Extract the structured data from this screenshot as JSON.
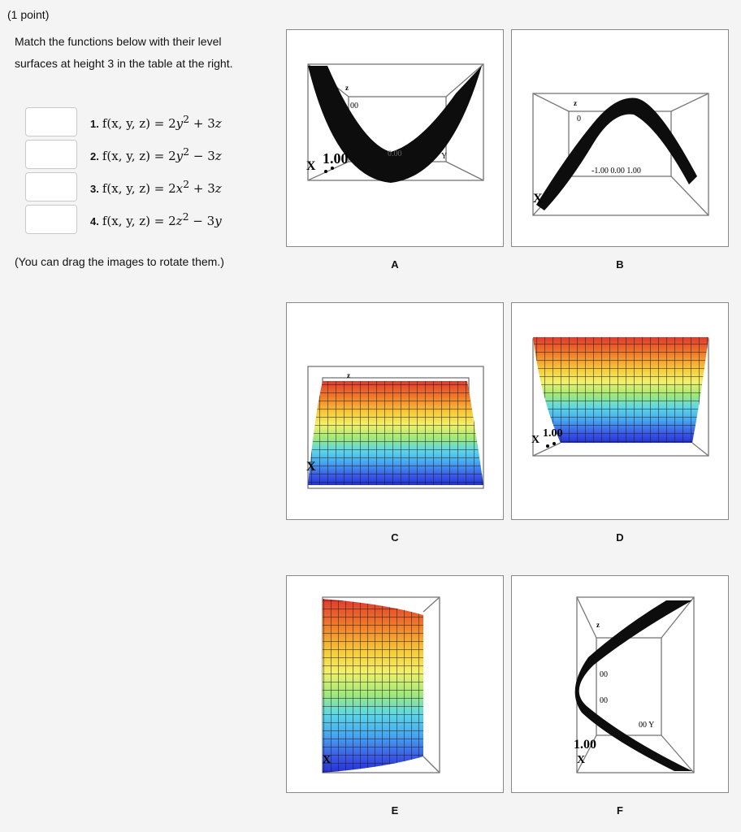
{
  "header": {
    "points": "(1 point)",
    "instructions": "Match the functions below with their level surfaces at height 3 in the table at the right.",
    "drag_note": "(You can drag the images to rotate them.)"
  },
  "functions": [
    {
      "num": "1.",
      "lhs": "f(x, y, z) = 2",
      "var": "y",
      "rhs": " + 3",
      "rhs_var": "z",
      "answer": ""
    },
    {
      "num": "2.",
      "lhs": "f(x, y, z) = 2",
      "var": "y",
      "rhs": " − 3",
      "rhs_var": "z",
      "answer": ""
    },
    {
      "num": "3.",
      "lhs": "f(x, y, z) = 2",
      "var": "x",
      "rhs": " + 3",
      "rhs_var": "z",
      "answer": ""
    },
    {
      "num": "4.",
      "lhs": "f(x, y, z) = 2",
      "var": "z",
      "rhs": " − 3",
      "rhs_var": "y",
      "answer": ""
    }
  ],
  "panels": [
    {
      "label": "A",
      "axis_labels": {
        "z": "z",
        "top": "00",
        "mid": "0.00",
        "x": "X",
        "x_tick": "1.00",
        "y": "Y"
      }
    },
    {
      "label": "B",
      "axis_labels": {
        "z": "z",
        "top": "0",
        "y_ticks": "-1.00 0.00 1.00",
        "x": "X"
      }
    },
    {
      "label": "C",
      "axis_labels": {
        "z": "z",
        "x": "X"
      }
    },
    {
      "label": "D",
      "axis_labels": {
        "x_tick": "1.00",
        "x": "X"
      }
    },
    {
      "label": "E",
      "axis_labels": {
        "x": "X"
      }
    },
    {
      "label": "F",
      "axis_labels": {
        "z": "z",
        "top": "00",
        "mid": "00",
        "x_tick": "1.00",
        "y_tick": "00 Y",
        "x": "X"
      }
    }
  ],
  "colors": {
    "band_stops": [
      "#e03a2e",
      "#ef7a2a",
      "#f6c93a",
      "#f2f06a",
      "#9ee87a",
      "#5ed8e6",
      "#47a8ef",
      "#3c5ee6",
      "#2430d8"
    ],
    "surface_dark": "#111111"
  }
}
